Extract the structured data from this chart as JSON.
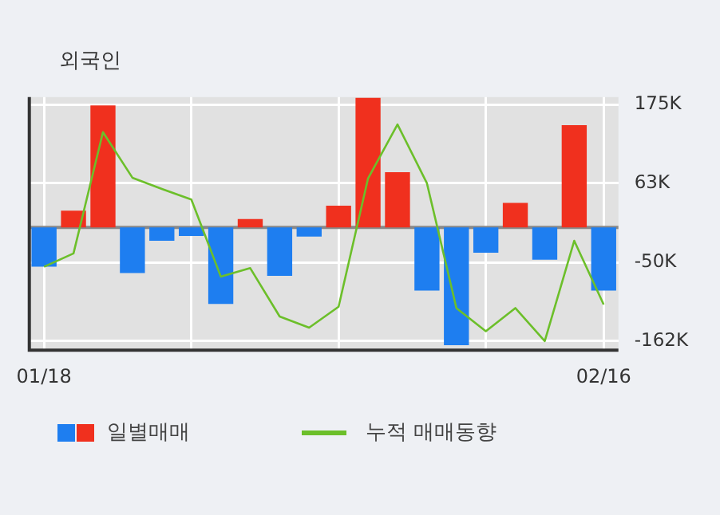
{
  "chart_data": {
    "type": "bar",
    "title": "외국인",
    "categories": [
      "01/18",
      null,
      null,
      null,
      null,
      null,
      null,
      null,
      null,
      null,
      null,
      null,
      null,
      null,
      null,
      null,
      null,
      null,
      null,
      "02/16"
    ],
    "series": [
      {
        "name": "일별매매",
        "colors": [
          "#1e7ef0",
          "#f0301e",
          "#f0301e",
          "#1e7ef0",
          "#1e7ef0",
          "#1e7ef0",
          "#1e7ef0",
          "#f0301e",
          "#1e7ef0",
          "#1e7ef0",
          "#f0301e",
          "#f0301e",
          "#f0301e",
          "#1e7ef0",
          "#1e7ef0",
          "#1e7ef0",
          "#f0301e",
          "#1e7ef0",
          "#f0301e",
          "#1e7ef0"
        ],
        "values": [
          -56000,
          24000,
          174000,
          -65000,
          -19000,
          -12000,
          -109000,
          12000,
          -69000,
          -13000,
          31000,
          185000,
          79000,
          -90000,
          -168000,
          -36000,
          35000,
          -46000,
          146000,
          -90000
        ]
      },
      {
        "name": "누적 매매동향",
        "type": "line",
        "color": "#6cbf2a",
        "values": [
          -56000,
          -37000,
          136000,
          71000,
          55000,
          40000,
          -70000,
          -58000,
          -127000,
          -143000,
          -113000,
          70000,
          147000,
          63000,
          -115000,
          -148000,
          -115000,
          -162000,
          -19000,
          -110000
        ]
      }
    ],
    "ylim": [
      -175000,
      186000
    ],
    "yticks": [
      {
        "value": 175000,
        "label": "175K"
      },
      {
        "value": 63000,
        "label": "63K"
      },
      {
        "value": -50000,
        "label": "-50K"
      },
      {
        "value": -162000,
        "label": "-162K"
      }
    ],
    "grid": true,
    "legend": "bottom",
    "marker": "none",
    "line_style": "solid"
  }
}
